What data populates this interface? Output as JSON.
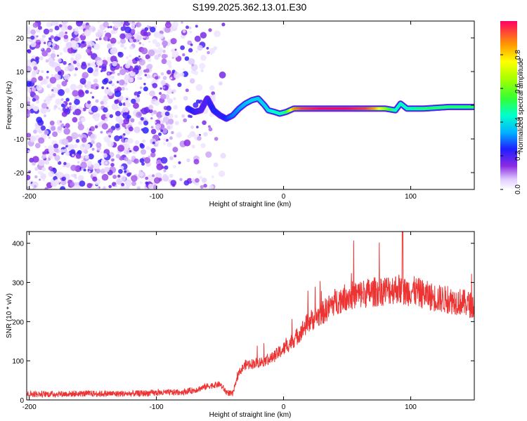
{
  "figure": {
    "title": "S199.2025.362.13.01.E30"
  },
  "chart_data": [
    {
      "type": "heatmap",
      "name": "spectrogram",
      "title": "",
      "xlabel": "Height of straight line (km)",
      "ylabel": "Frequency (Hz)",
      "xlim": [
        -202,
        150
      ],
      "ylim": [
        -25,
        25
      ],
      "x_ticks": [
        -200,
        -100,
        0,
        100
      ],
      "y_ticks": [
        20,
        10,
        0,
        -10,
        -20
      ],
      "colorbar": {
        "label": "Normalized spectral amplitude",
        "range": [
          0,
          1
        ],
        "ticks": [
          0.0,
          0.2,
          0.4,
          0.6,
          0.8
        ]
      },
      "noise_region_x": [
        -202,
        -47
      ],
      "signal_trace": [
        {
          "x": -75,
          "y": -1,
          "amp": 0.25
        },
        {
          "x": -70,
          "y": -2,
          "amp": 0.22
        },
        {
          "x": -65,
          "y": -1.5,
          "amp": 0.2
        },
        {
          "x": -60,
          "y": 2,
          "amp": 0.2
        },
        {
          "x": -55,
          "y": -1.5,
          "amp": 0.25
        },
        {
          "x": -50,
          "y": -3,
          "amp": 0.22
        },
        {
          "x": -45,
          "y": -4,
          "amp": 0.25
        },
        {
          "x": -40,
          "y": -3,
          "amp": 0.3
        },
        {
          "x": -35,
          "y": -1,
          "amp": 0.32
        },
        {
          "x": -30,
          "y": 0.5,
          "amp": 0.35
        },
        {
          "x": -25,
          "y": 1.5,
          "amp": 0.38
        },
        {
          "x": -20,
          "y": 2,
          "amp": 0.38
        },
        {
          "x": -15,
          "y": 0,
          "amp": 0.38
        },
        {
          "x": -12,
          "y": -1.5,
          "amp": 0.4
        },
        {
          "x": -7,
          "y": -2,
          "amp": 0.45
        },
        {
          "x": -3,
          "y": -2.5,
          "amp": 0.45
        },
        {
          "x": 2,
          "y": -2,
          "amp": 0.5
        },
        {
          "x": 8,
          "y": -1,
          "amp": 0.85
        },
        {
          "x": 15,
          "y": -1,
          "amp": 0.95
        },
        {
          "x": 30,
          "y": -1,
          "amp": 1.0
        },
        {
          "x": 50,
          "y": -1,
          "amp": 1.0
        },
        {
          "x": 65,
          "y": -1,
          "amp": 0.95
        },
        {
          "x": 72,
          "y": -1,
          "amp": 0.85
        },
        {
          "x": 80,
          "y": -1,
          "amp": 0.65
        },
        {
          "x": 88,
          "y": -1.5,
          "amp": 0.45
        },
        {
          "x": 92,
          "y": 0.5,
          "amp": 0.45
        },
        {
          "x": 97,
          "y": -1,
          "amp": 0.45
        },
        {
          "x": 110,
          "y": -1,
          "amp": 0.5
        },
        {
          "x": 130,
          "y": -0.5,
          "amp": 0.5
        },
        {
          "x": 150,
          "y": -0.5,
          "amp": 0.5
        }
      ]
    },
    {
      "type": "line",
      "name": "snr",
      "title": "",
      "xlabel": "Height of straight line (km)",
      "ylabel": "SNR (10 * v/v)",
      "xlim": [
        -202,
        150
      ],
      "ylim": [
        0,
        430
      ],
      "x_ticks": [
        -200,
        -100,
        0,
        100
      ],
      "y_ticks": [
        0,
        100,
        200,
        300,
        400
      ],
      "series": [
        {
          "name": "SNR",
          "color": "#ee3333",
          "x": [
            -202,
            -180,
            -160,
            -140,
            -120,
            -100,
            -80,
            -70,
            -60,
            -50,
            -45,
            -40,
            -35,
            -30,
            -20,
            -10,
            0,
            10,
            20,
            30,
            40,
            50,
            60,
            70,
            80,
            90,
            95,
            100,
            110,
            120,
            130,
            140,
            150
          ],
          "y": [
            15,
            15,
            16,
            16,
            16,
            18,
            20,
            25,
            35,
            40,
            20,
            15,
            70,
            90,
            95,
            105,
            130,
            160,
            200,
            220,
            250,
            265,
            270,
            275,
            280,
            285,
            275,
            280,
            270,
            260,
            255,
            250,
            240
          ]
        }
      ]
    }
  ]
}
